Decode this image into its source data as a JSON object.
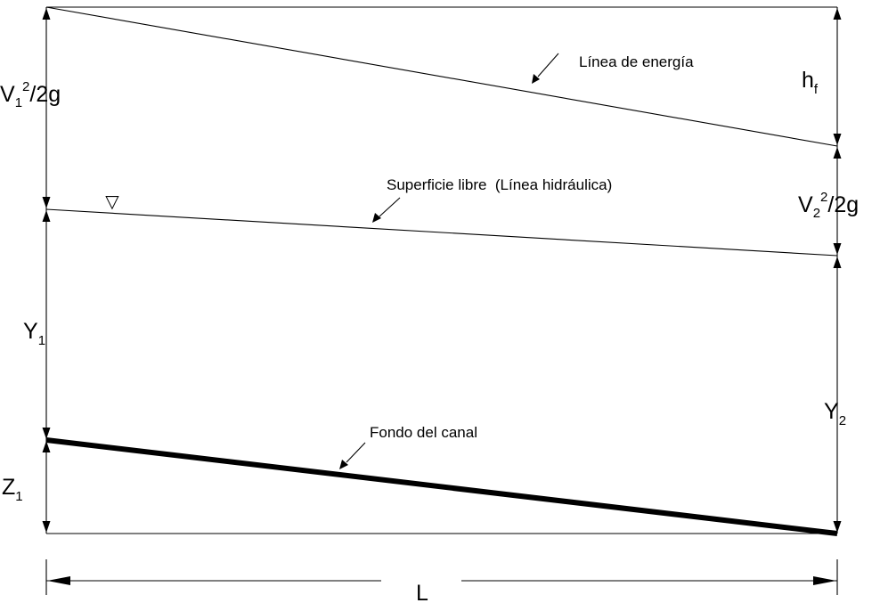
{
  "labels": {
    "energy_line": "Línea de energía",
    "free_surface": "Superficie libre  (Línea hidráulica)",
    "channel_bottom": "Fondo del canal",
    "length": "L",
    "head_loss": {
      "base": "h",
      "sub": "f"
    },
    "velocity_head_1": {
      "base": "V",
      "sub": "1",
      "sup": "2",
      "rest": "/2g"
    },
    "velocity_head_2": {
      "base": "V",
      "sub": "2",
      "sup": "2",
      "rest": "/2g"
    },
    "depth_1": {
      "base": "Y",
      "sub": "1"
    },
    "depth_2": {
      "base": "Y",
      "sub": "2"
    },
    "elevation_1": {
      "base": "Z",
      "sub": "1"
    }
  },
  "symbols": {
    "water_surface": "▽"
  },
  "colors": {
    "stroke": "#000000",
    "background": "#ffffff"
  }
}
